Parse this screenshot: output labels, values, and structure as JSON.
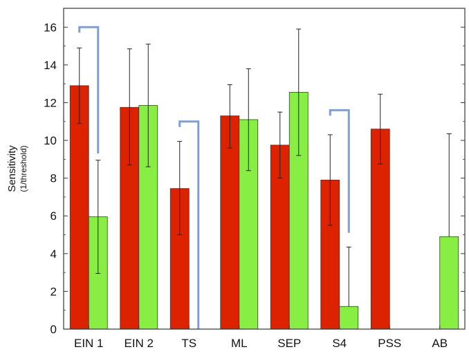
{
  "chart_data": {
    "type": "bar",
    "title": "",
    "xlabel": "",
    "ylabel": "Sensitivity",
    "ylabel_sub": "(1/threshold)",
    "ylim": [
      0,
      17
    ],
    "yticks": [
      0,
      2,
      4,
      6,
      8,
      10,
      12,
      14,
      16
    ],
    "grid": false,
    "legend": "none",
    "categories": [
      "EIN 1",
      "EIN 2",
      "TS",
      "ML",
      "SEP",
      "S4",
      "PSS",
      "AB"
    ],
    "series": [
      {
        "color": "#dd2200",
        "values": [
          12.9,
          11.75,
          7.45,
          11.3,
          9.75,
          7.9,
          10.6,
          null
        ],
        "error_low": [
          10.9,
          8.7,
          5.0,
          9.6,
          8.0,
          5.5,
          8.75,
          null
        ],
        "error_high": [
          14.9,
          14.85,
          9.95,
          12.95,
          11.5,
          10.3,
          12.45,
          null
        ]
      },
      {
        "color": "#88ee44",
        "values": [
          5.95,
          11.85,
          0,
          11.1,
          12.55,
          1.2,
          null,
          4.9
        ],
        "error_low": [
          2.95,
          8.6,
          null,
          8.4,
          9.2,
          null,
          null,
          null
        ],
        "error_high": [
          8.95,
          15.1,
          null,
          13.8,
          15.9,
          4.35,
          null,
          10.35
        ]
      }
    ],
    "brackets": [
      {
        "category": "EIN 1",
        "top": 16.0,
        "bottom": 9.3
      },
      {
        "category": "TS",
        "top": 11.0,
        "bottom": 0.0
      },
      {
        "category": "S4",
        "top": 11.6,
        "bottom": 5.1
      }
    ],
    "colors": {
      "bracket": "#7f9fd4",
      "axis": "#333333",
      "errorbar": "#222222"
    }
  }
}
